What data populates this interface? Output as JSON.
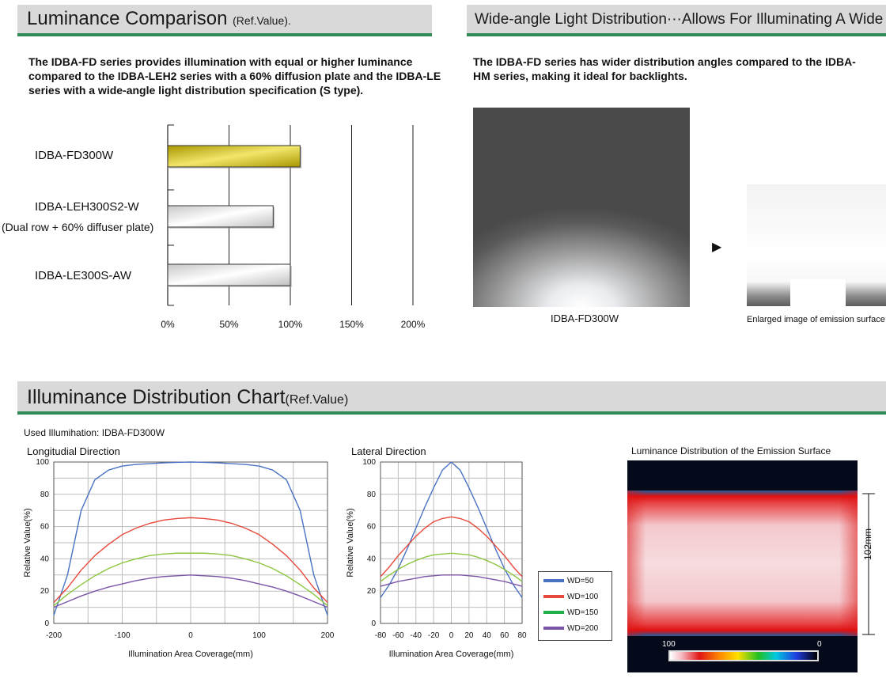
{
  "sections": {
    "luminance": {
      "title": "Luminance Comparison",
      "title_note": "(Ref.Value).",
      "description": "The IDBA-FD series provides illumination with equal or higher luminance compared to the IDBA-LEH2 series with a 60% diffusion plate and the IDBA-LE series with a wide-angle light distribution specification (S type)."
    },
    "wide_angle": {
      "title": "Wide-angle Light Distribution···Allows For Illuminating A Wide Area.",
      "description": "The IDBA-FD series has wider distribution angles compared to the IDBA-HM series, making it ideal for backlights.",
      "photo_caption": "IDBA-FD300W",
      "enlarged_caption": "Enlarged image of emission surface",
      "arrow": "▶"
    },
    "illuminance": {
      "title": "Illuminance Distribution Chart",
      "title_note": "(Ref.Value)",
      "used_illumination": "Used Illumihation: IDBA-FD300W",
      "heatmap_title": "Luminance Distribution of the Emission Surface",
      "heatmap_dimension": "102mm",
      "scale_left": "100",
      "scale_right": "0"
    }
  },
  "colors": {
    "header_bg": "#d9d9d9",
    "header_rule": "#2e8b57",
    "bar_highlight": "#c8b400",
    "bar_plain": "#e6e6e6",
    "wd50": "#4a72c4",
    "wd100": "#e8483a",
    "wd150": "#8cc63e",
    "wd200": "#7b56a8"
  },
  "chart_data": [
    {
      "type": "bar",
      "orientation": "horizontal",
      "categories": [
        "IDBA-FD300W",
        "IDBA-LEH300S2-W",
        "IDBA-LE300S-AW"
      ],
      "category_sublabels": [
        "",
        "(Dual row + 60% diffuser plate)",
        ""
      ],
      "values": [
        108,
        86,
        100
      ],
      "xticks": [
        "0%",
        "50%",
        "100%",
        "150%",
        "200%"
      ],
      "xlim": [
        0,
        200
      ],
      "grid": true
    },
    {
      "type": "line",
      "title": "Longitudial Direction",
      "xlabel": "Illumination Area Coverage(mm)",
      "ylabel": "Relative Value(%)",
      "xlim": [
        -200,
        200
      ],
      "ylim": [
        0,
        100
      ],
      "xticks": [
        -200,
        -100,
        0,
        100,
        200
      ],
      "yticks": [
        0,
        20,
        40,
        60,
        80,
        100
      ],
      "grid": true,
      "x": [
        -200,
        -180,
        -160,
        -140,
        -120,
        -100,
        -80,
        -60,
        -40,
        -20,
        0,
        20,
        40,
        60,
        80,
        100,
        120,
        140,
        160,
        180,
        200
      ],
      "series": [
        {
          "name": "WD=50",
          "values": [
            5,
            30,
            70,
            89,
            95,
            97.5,
            98.5,
            99,
            99.5,
            99.8,
            100,
            99.8,
            99.5,
            99,
            98.5,
            97.5,
            95,
            89,
            70,
            30,
            5
          ]
        },
        {
          "name": "WD=100",
          "values": [
            13,
            22,
            33,
            42,
            49,
            55,
            59,
            62,
            64,
            65,
            65.5,
            65,
            64,
            62,
            59,
            55,
            49,
            42,
            33,
            22,
            13
          ]
        },
        {
          "name": "WD=150",
          "values": [
            11,
            18,
            24,
            29.5,
            34,
            37.5,
            40,
            42,
            43,
            43.5,
            43.5,
            43.5,
            43,
            42,
            40,
            37.5,
            34,
            29.5,
            24,
            18,
            11
          ]
        },
        {
          "name": "WD=200",
          "values": [
            10,
            13.5,
            17,
            20,
            22.5,
            24.5,
            26.5,
            28,
            29,
            29.5,
            30,
            29.5,
            29,
            28,
            26.5,
            24.5,
            22.5,
            20,
            17,
            13.5,
            10
          ]
        }
      ]
    },
    {
      "type": "line",
      "title": "Lateral Direction",
      "xlabel": "Illumination Area Coverage(mm)",
      "ylabel": "Relative Value(%)",
      "xlim": [
        -80,
        80
      ],
      "ylim": [
        0,
        100
      ],
      "xticks": [
        -80,
        -60,
        -40,
        -20,
        0,
        20,
        40,
        60,
        80
      ],
      "yticks": [
        0,
        20,
        40,
        60,
        80,
        100
      ],
      "grid": true,
      "legend": "right",
      "x": [
        -80,
        -70,
        -60,
        -50,
        -40,
        -30,
        -20,
        -10,
        0,
        10,
        20,
        30,
        40,
        50,
        60,
        70,
        80
      ],
      "series": [
        {
          "name": "WD=50",
          "values": [
            16,
            24,
            34,
            46,
            59,
            72,
            84,
            95,
            100,
            95,
            84,
            72,
            59,
            46,
            34,
            24,
            16
          ]
        },
        {
          "name": "WD=100",
          "values": [
            29,
            35,
            42,
            48,
            54,
            59,
            63,
            65,
            66,
            65,
            63,
            59,
            54,
            48,
            42,
            35,
            29
          ]
        },
        {
          "name": "WD=150",
          "values": [
            26,
            30,
            33.5,
            36.5,
            39,
            41,
            42.5,
            43,
            43.5,
            43,
            42.5,
            41,
            39,
            36.5,
            33.5,
            30,
            26
          ]
        },
        {
          "name": "WD=200",
          "values": [
            23,
            24.5,
            26,
            27,
            28,
            29,
            29.5,
            30,
            30,
            30,
            29.5,
            29,
            28,
            27,
            26,
            24.5,
            23
          ]
        }
      ]
    }
  ]
}
